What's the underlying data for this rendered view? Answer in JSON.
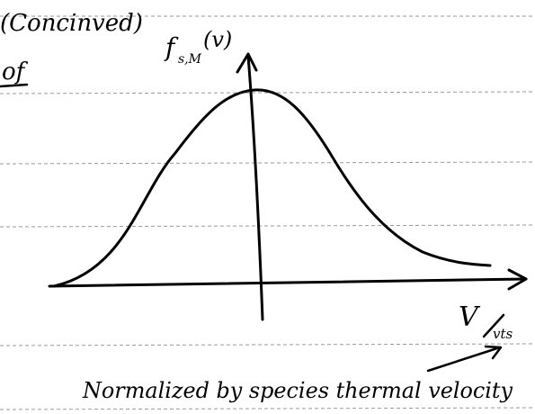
{
  "header": {
    "note": "(Concinved)",
    "margin_word": "of"
  },
  "diagram": {
    "y_axis_label": {
      "base": "f",
      "subscript": "s,M",
      "argument": "(v)"
    },
    "x_axis_label": {
      "numerator": "V",
      "denominator": "vts"
    },
    "annotation": "Normalized by species thermal velocity"
  }
}
